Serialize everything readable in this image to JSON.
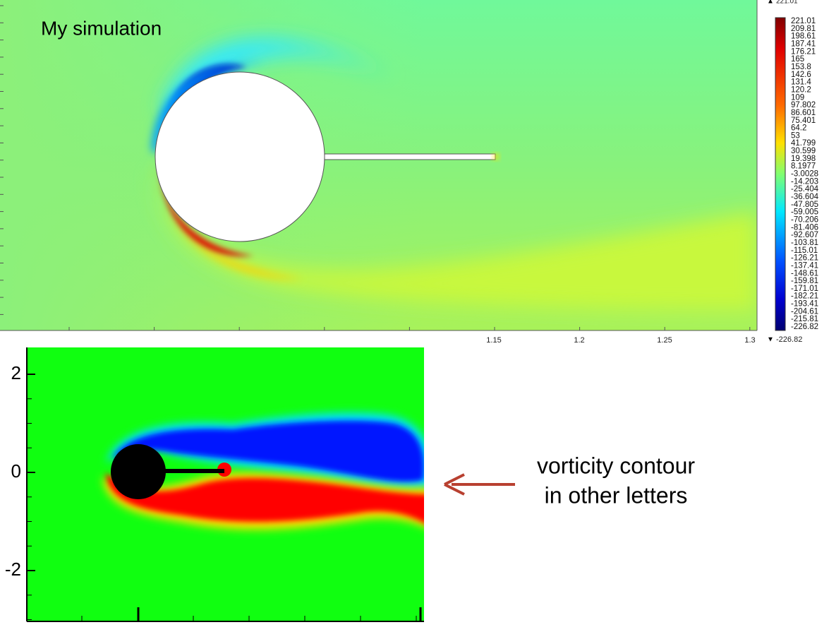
{
  "top_plot": {
    "title": "My simulation",
    "x_tick_labels": [
      "1.15",
      "1.2",
      "1.25",
      "1.3"
    ],
    "colorbar": {
      "max_label": "221.01",
      "min_label": "-226.82",
      "labels": [
        "221.01",
        "209.81",
        "198.61",
        "187.41",
        "176.21",
        "165",
        "153.8",
        "142.6",
        "131.4",
        "120.2",
        "109",
        "97.802",
        "86.601",
        "75.401",
        "64.2",
        "53",
        "41.799",
        "30.599",
        "19.398",
        "8.1977",
        "-3.0028",
        "-14.203",
        "-25.404",
        "-36.604",
        "-47.805",
        "-59.005",
        "-70.206",
        "-81.406",
        "-92.607",
        "-103.81",
        "-115.01",
        "-126.21",
        "-137.41",
        "-148.61",
        "-159.81",
        "-171.01",
        "-182.21",
        "-193.41",
        "-204.61",
        "-215.81",
        "-226.82"
      ]
    }
  },
  "bottom_plot": {
    "y_tick_labels": [
      "2",
      "0",
      "-2"
    ]
  },
  "annotation": {
    "lines": [
      "vorticity contour",
      "in other letters"
    ]
  }
}
